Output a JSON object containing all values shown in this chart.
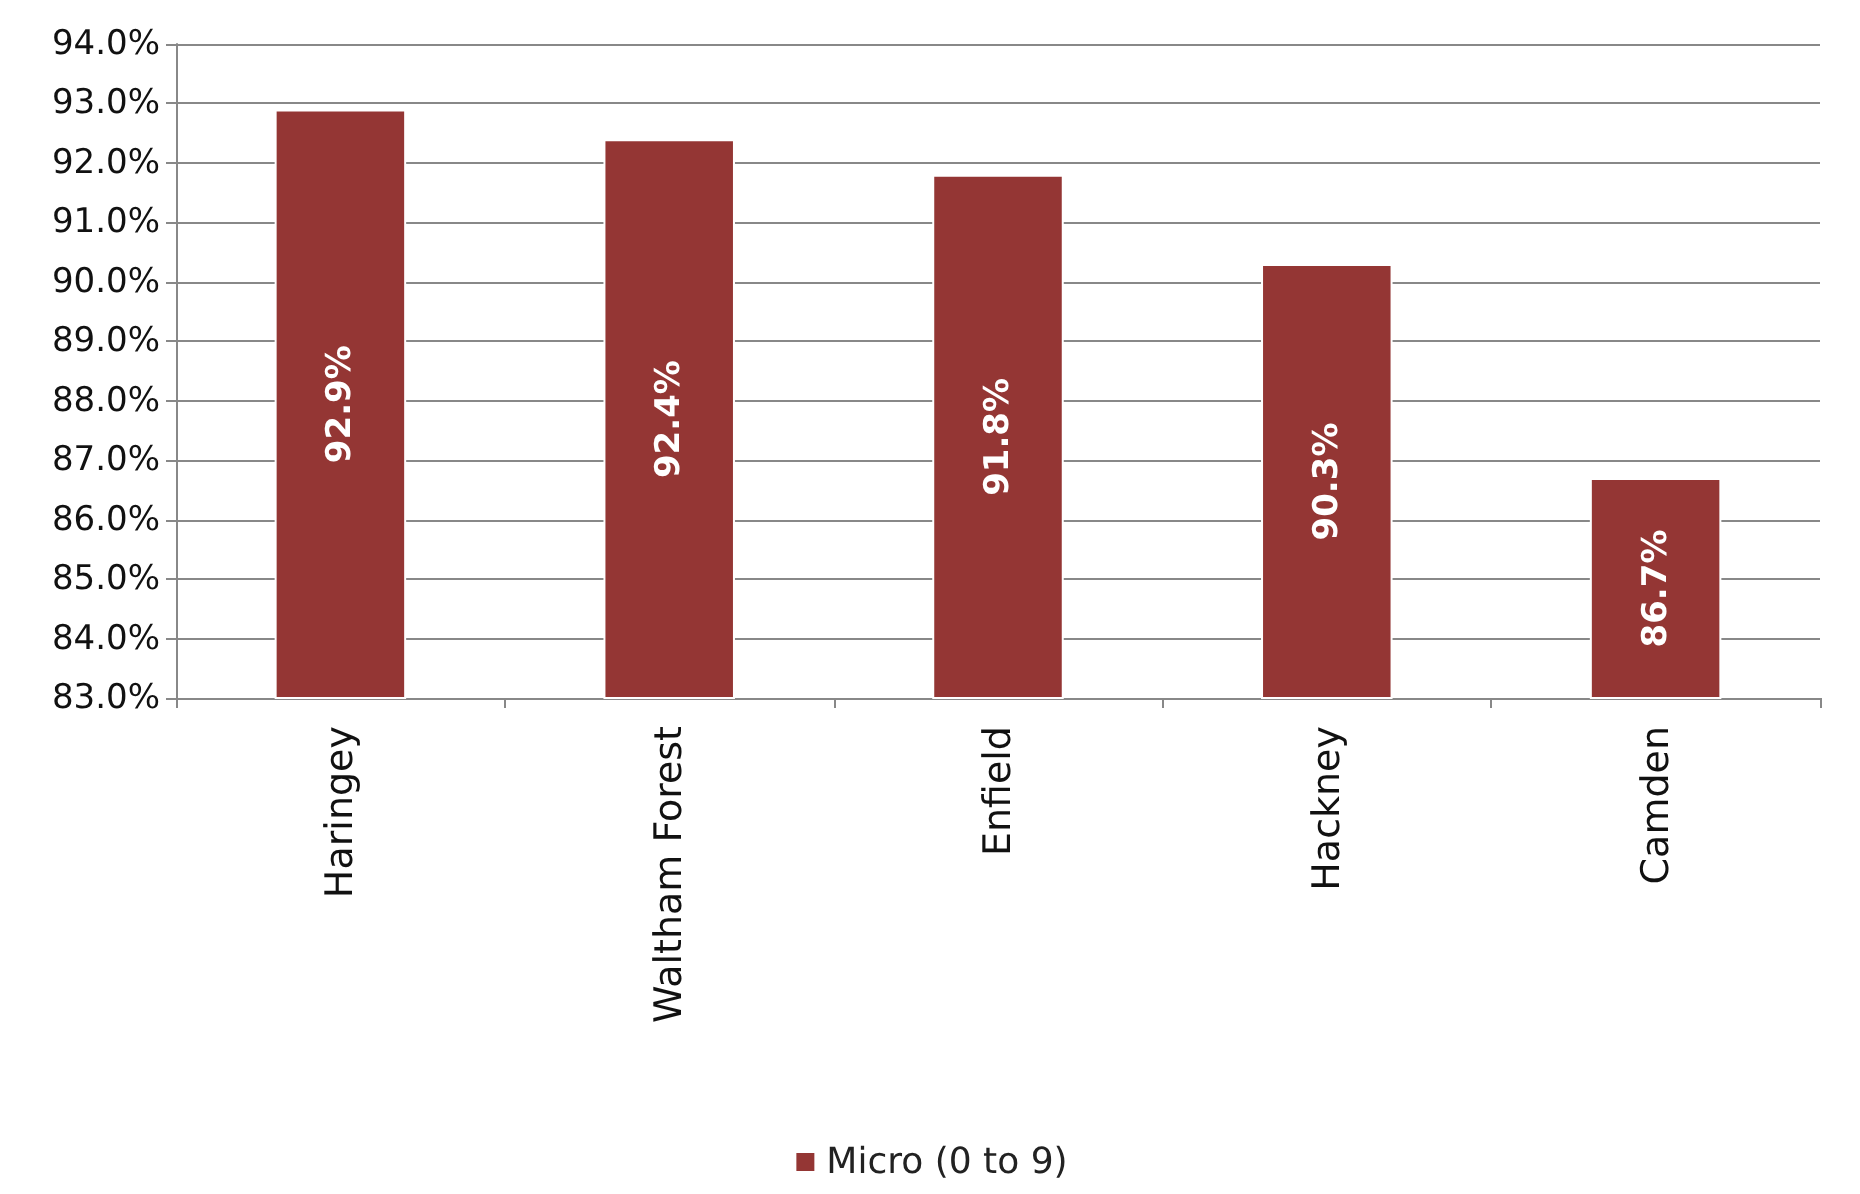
{
  "chart_data": {
    "type": "bar",
    "categories": [
      "Haringey",
      "Waltham Forest",
      "Enfield",
      "Hackney",
      "Camden"
    ],
    "series": [
      {
        "name": "Micro (0 to 9)",
        "color": "#943634",
        "values": [
          92.9,
          92.4,
          91.8,
          90.3,
          86.7
        ],
        "value_labels": [
          "92.9%",
          "92.4%",
          "91.8%",
          "90.3%",
          "86.7%"
        ]
      }
    ],
    "ylim": [
      83,
      94
    ],
    "yticks": [
      {
        "value": 83,
        "label": "83.0%"
      },
      {
        "value": 84,
        "label": "84.0%"
      },
      {
        "value": 85,
        "label": "85.0%"
      },
      {
        "value": 86,
        "label": "86.0%"
      },
      {
        "value": 87,
        "label": "87.0%"
      },
      {
        "value": 88,
        "label": "88.0%"
      },
      {
        "value": 89,
        "label": "89.0%"
      },
      {
        "value": 90,
        "label": "90.0%"
      },
      {
        "value": 91,
        "label": "91.0%"
      },
      {
        "value": 92,
        "label": "92.0%"
      },
      {
        "value": 93,
        "label": "93.0%"
      },
      {
        "value": 94,
        "label": "94.0%"
      }
    ],
    "grid": "y",
    "legend": "bottom"
  }
}
